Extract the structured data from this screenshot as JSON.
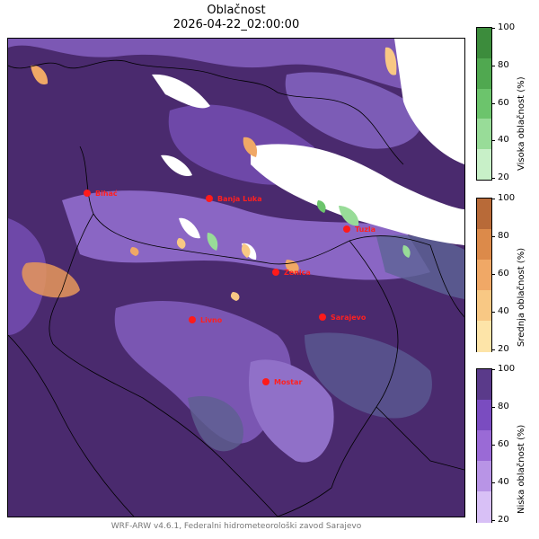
{
  "title": "Oblačnost",
  "timestamp": "2026-04-22_02:00:00",
  "footer": "WRF-ARW v4.6.1, Federalni hidrometeorološki zavod Sarajevo",
  "colors": {
    "low_dark": "#4a2a6e",
    "low_mid": "#6e48a8",
    "low_light": "#9a78d0",
    "mid": "#f0a060",
    "high": "#5ab85a"
  },
  "colorbars": [
    {
      "label": "Visoka oblačnost (%)",
      "ticks": [
        "100",
        "80",
        "60",
        "40",
        "20"
      ],
      "colors": [
        "#3c8c3c",
        "#50a850",
        "#6cc46c",
        "#98dc98",
        "#c8f0c8"
      ]
    },
    {
      "label": "Srednja oblačnost (%)",
      "ticks": [
        "100",
        "80",
        "60",
        "40",
        "20"
      ],
      "colors": [
        "#b86a38",
        "#dc8a4a",
        "#f0a866",
        "#f8c884",
        "#fde4a8"
      ]
    },
    {
      "label": "Niska oblačnost (%)",
      "ticks": [
        "100",
        "80",
        "60",
        "40",
        "20"
      ],
      "colors": [
        "#5a3a8a",
        "#7a4cc0",
        "#9a6ad6",
        "#b894e6",
        "#d8c0f6"
      ]
    }
  ],
  "cities": [
    {
      "name": "Bihać"
    },
    {
      "name": "Banja Luka"
    },
    {
      "name": "Tuzla"
    },
    {
      "name": "Zenica"
    },
    {
      "name": "Sarajevo"
    },
    {
      "name": "Livno"
    },
    {
      "name": "Mostar"
    }
  ]
}
